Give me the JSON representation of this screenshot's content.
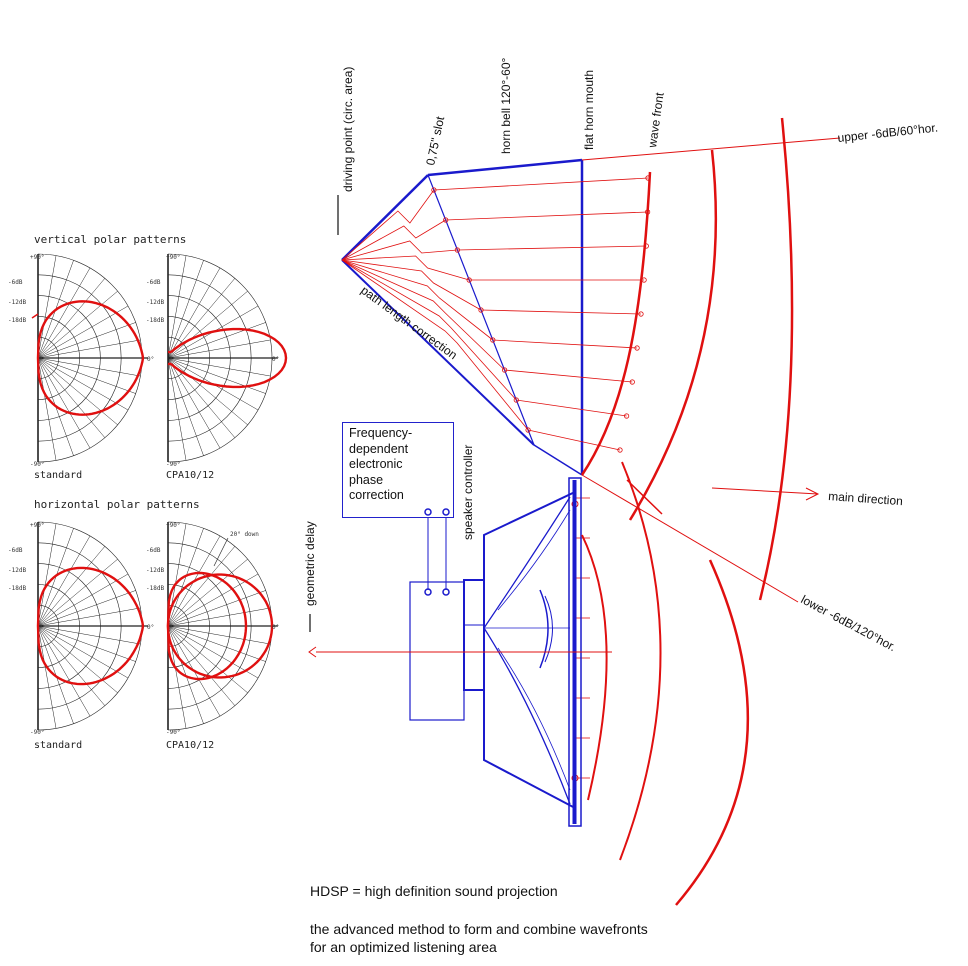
{
  "polar": {
    "vertical_title": "vertical polar patterns",
    "horizontal_title": "horizontal polar patterns",
    "caption_standard": "standard",
    "caption_cpa": "CPA10/12",
    "tick_top": "+90°",
    "tick_bottom": "-90°",
    "tick_zero": "0°",
    "level_6": "-6dB",
    "level_12": "-12dB",
    "level_18": "-18dB",
    "down_note": "20° down"
  },
  "labels": {
    "driving_point": "driving point (circ. area)",
    "slot": "0,75\" slot",
    "horn_bell": "horn bell 120°-60°",
    "flat_mouth": "flat horn mouth",
    "wave_front": "wave front",
    "upper": "upper -6dB/60°hor.",
    "path_length": "path length correction",
    "main_direction": "main direction",
    "lower": "lower -6dB/120°hor.",
    "geometric_delay": "geometric delay",
    "speaker_controller": "speaker controller"
  },
  "controller_box": {
    "line1": "Frequency-",
    "line2": "dependent",
    "line3": "electronic",
    "line4": "phase",
    "line5": "correction"
  },
  "captions": {
    "hdsp": "HDSP = high definition sound projection",
    "line1": "the advanced method to form and combine wavefronts",
    "line2": "for an optimized listening area"
  },
  "colors": {
    "red": "#e01010",
    "blue": "#1a1acc",
    "grid": "#222222"
  }
}
